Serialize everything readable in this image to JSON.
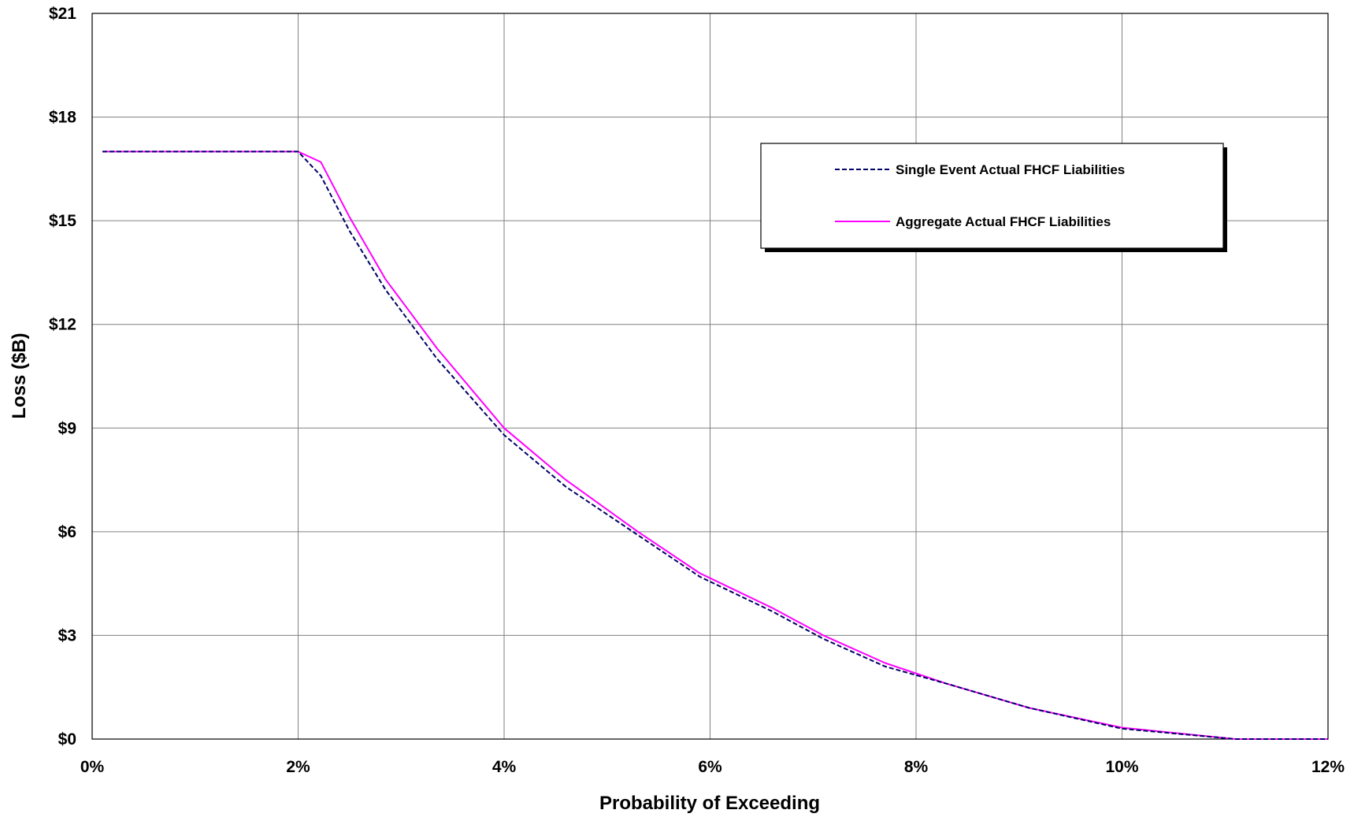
{
  "chart_data": {
    "type": "line",
    "xlabel": "Probability of Exceeding",
    "ylabel": "Loss ($B)",
    "xlim": [
      0,
      12
    ],
    "ylim": [
      0,
      21
    ],
    "x_ticks": [
      0,
      2,
      4,
      6,
      8,
      10,
      12
    ],
    "x_tick_labels": [
      "0%",
      "2%",
      "4%",
      "6%",
      "8%",
      "10%",
      "12%"
    ],
    "y_ticks": [
      0,
      3,
      6,
      9,
      12,
      15,
      18,
      21
    ],
    "y_tick_labels": [
      "$0",
      "$3",
      "$6",
      "$9",
      "$12",
      "$15",
      "$18",
      "$21"
    ],
    "grid": true,
    "legend_position": "top-right",
    "series": [
      {
        "name": "Single Event Actual FHCF Liabilities",
        "color": "#000066",
        "dash": "dashed",
        "x": [
          0.1,
          2.0,
          2.22,
          2.5,
          2.85,
          3.35,
          4.0,
          4.6,
          5.3,
          5.9,
          6.6,
          7.1,
          7.7,
          8.3,
          9.1,
          10.0,
          11.1,
          12.0
        ],
        "y": [
          17.0,
          17.0,
          16.3,
          14.7,
          13.0,
          11.0,
          8.8,
          7.3,
          5.9,
          4.7,
          3.7,
          2.9,
          2.1,
          1.6,
          0.9,
          0.3,
          0.0,
          0.0
        ]
      },
      {
        "name": "Aggregate Actual FHCF Liabilities",
        "color": "#ff00ff",
        "dash": "solid",
        "x": [
          0.1,
          2.0,
          2.22,
          2.5,
          2.85,
          3.35,
          4.0,
          4.6,
          5.3,
          5.9,
          6.6,
          7.1,
          7.7,
          8.3,
          9.1,
          10.0,
          11.1,
          12.0
        ],
        "y": [
          17.0,
          17.0,
          16.7,
          15.1,
          13.3,
          11.3,
          9.0,
          7.5,
          6.0,
          4.8,
          3.8,
          3.0,
          2.2,
          1.6,
          0.9,
          0.33,
          0.0,
          0.0
        ]
      }
    ]
  }
}
